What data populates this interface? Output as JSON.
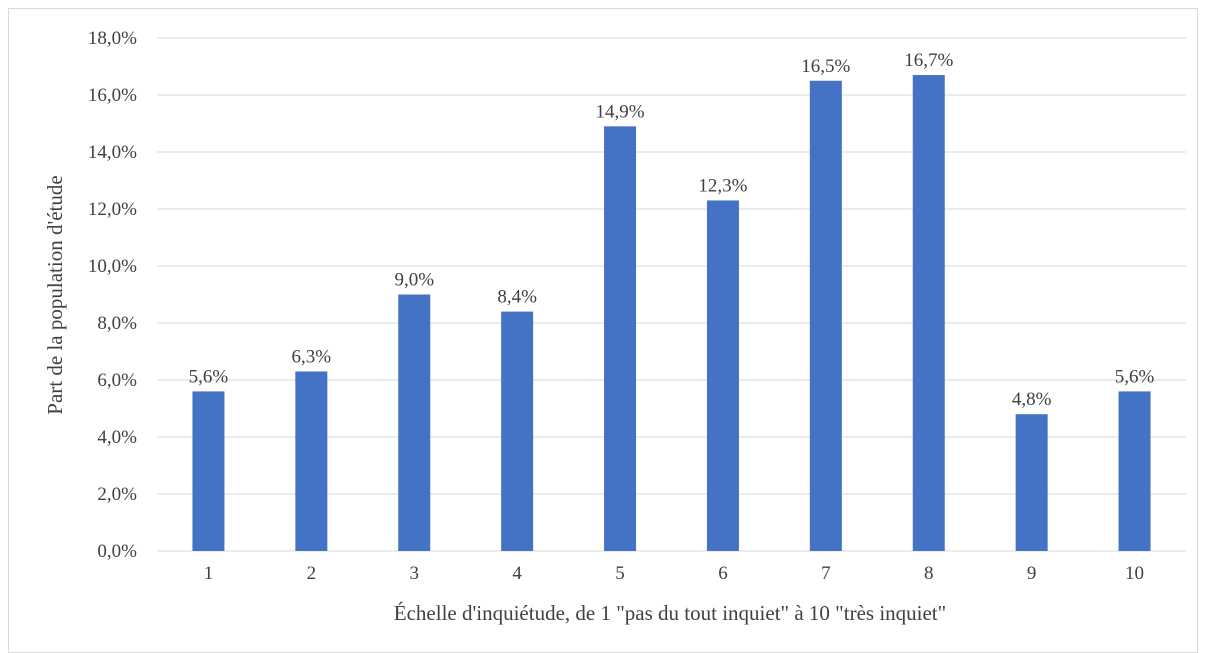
{
  "chart_data": {
    "type": "bar",
    "categories": [
      "1",
      "2",
      "3",
      "4",
      "5",
      "6",
      "7",
      "8",
      "9",
      "10"
    ],
    "values": [
      5.6,
      6.3,
      9.0,
      8.4,
      14.9,
      12.3,
      16.5,
      16.7,
      4.8,
      5.6
    ],
    "data_labels": [
      "5,6%",
      "6,3%",
      "9,0%",
      "8,4%",
      "14,9%",
      "12,3%",
      "16,5%",
      "16,7%",
      "4,8%",
      "5,6%"
    ],
    "y_ticks": [
      0,
      2,
      4,
      6,
      8,
      10,
      12,
      14,
      16,
      18
    ],
    "y_tick_labels": [
      "0,0%",
      "2,0%",
      "4,0%",
      "6,0%",
      "8,0%",
      "10,0%",
      "12,0%",
      "14,0%",
      "16,0%",
      "18,0%"
    ],
    "ylim": [
      0,
      18
    ],
    "xlabel": "Échelle d'inquiétude, de 1 \"pas du tout inquiet\" à 10 \"très inquiet\"",
    "ylabel": "Part de la population d'étude",
    "grid": true,
    "colors": {
      "bar": "#4472c4",
      "grid": "#d9d9d9",
      "text": "#404040"
    }
  }
}
